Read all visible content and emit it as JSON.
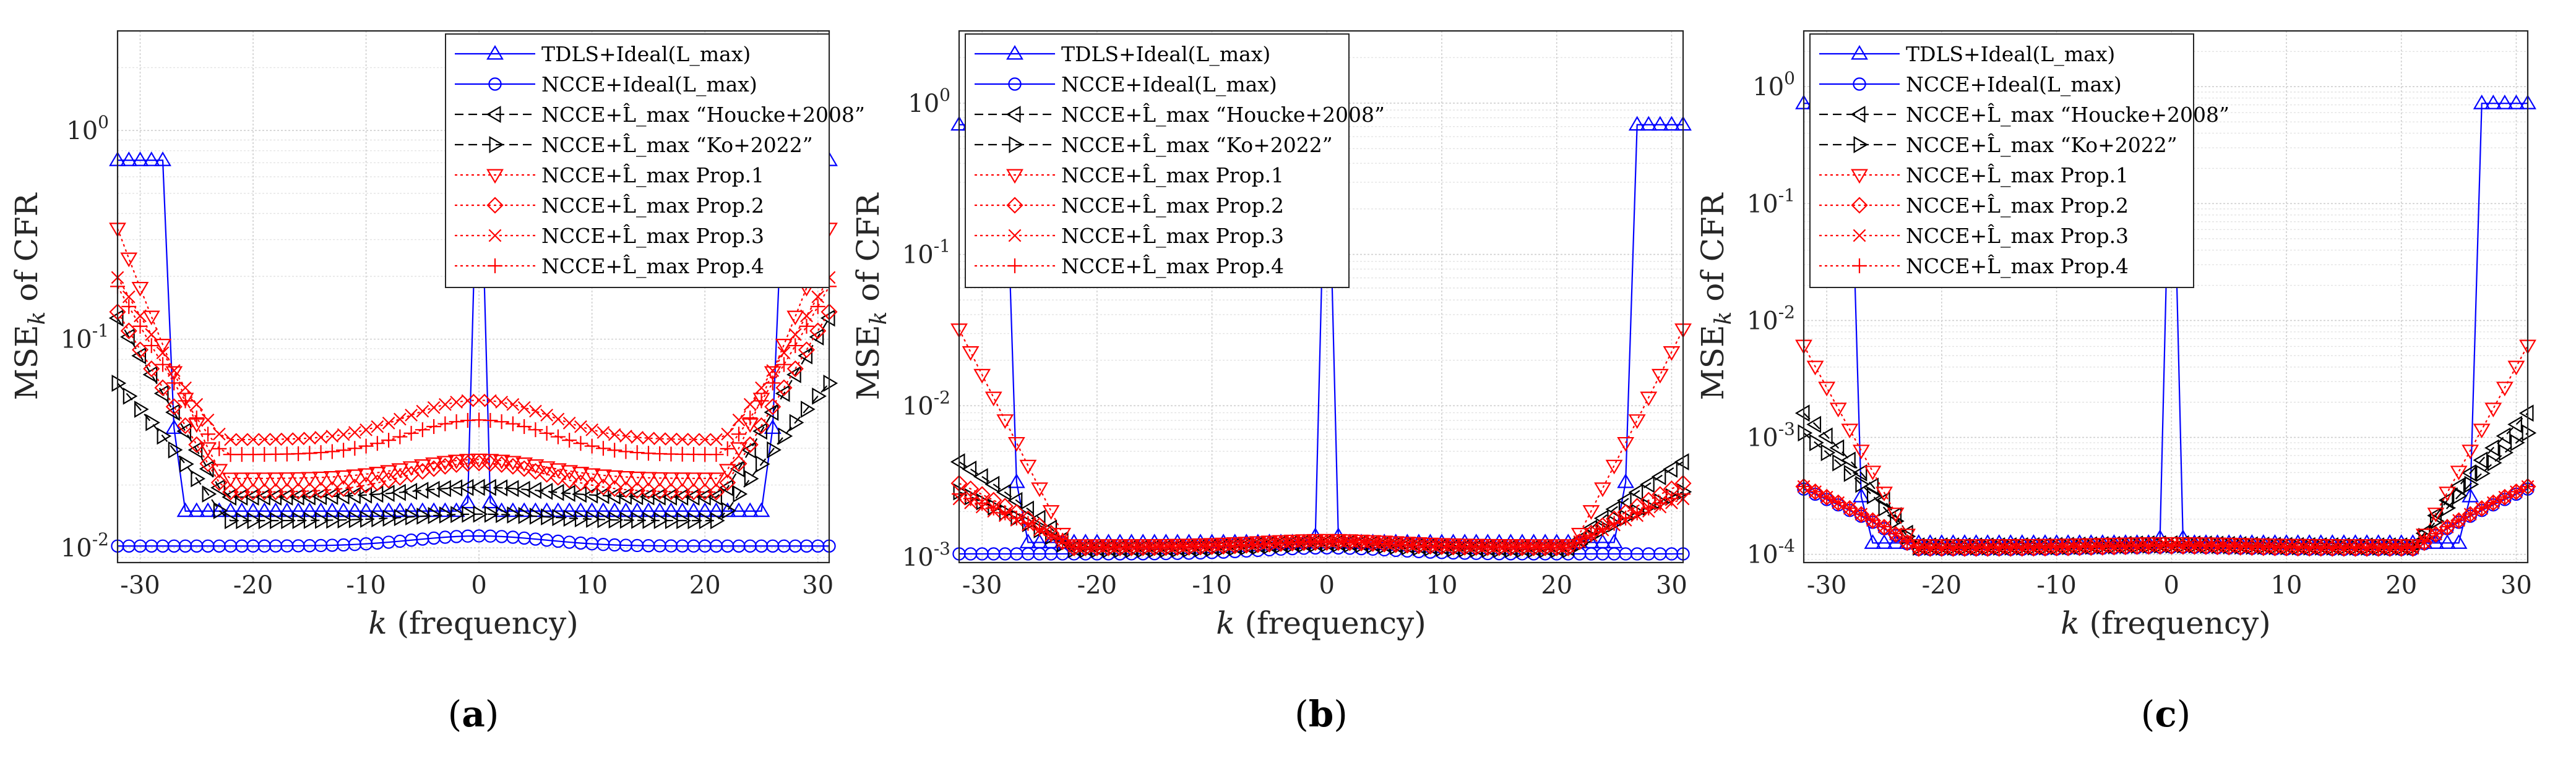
{
  "figure": {
    "panel_labels": [
      "(a)",
      "(b)",
      "(c)"
    ]
  },
  "legend_entries": [
    {
      "label": "TDLS+Ideal(L_max)",
      "color": "#0000ff",
      "marker": "triangle-up",
      "dash": "solid"
    },
    {
      "label": "NCCE+Ideal(L_max)",
      "color": "#0000ff",
      "marker": "circle",
      "dash": "solid"
    },
    {
      "label": "NCCE+L̂_max “Houcke+2008”",
      "color": "#000000",
      "marker": "triangle-left",
      "dash": "dashed"
    },
    {
      "label": "NCCE+L̂_max “Ko+2022”",
      "color": "#000000",
      "marker": "triangle-right",
      "dash": "dashed"
    },
    {
      "label": "NCCE+L̂_max Prop.1",
      "color": "#ff0000",
      "marker": "triangle-down",
      "dash": "dotted"
    },
    {
      "label": "NCCE+L̂_max Prop.2",
      "color": "#ff0000",
      "marker": "diamond",
      "dash": "dotted"
    },
    {
      "label": "NCCE+L̂_max Prop.3",
      "color": "#ff0000",
      "marker": "x",
      "dash": "dotted"
    },
    {
      "label": "NCCE+L̂_max Prop.4",
      "color": "#ff0000",
      "marker": "plus",
      "dash": "dotted"
    }
  ],
  "chart_data": [
    {
      "type": "line",
      "panel": "(a)",
      "xlabel": "k (frequency)",
      "ylabel": "MSE_k of CFR",
      "x_range": [
        -32,
        31
      ],
      "y_scale": "log",
      "ylim": [
        0.0085,
        3
      ],
      "x_ticks": [
        -30,
        -20,
        -10,
        0,
        10,
        20,
        30
      ],
      "y_ticks": [
        {
          "value": 0.01,
          "label": "10^-2"
        },
        {
          "value": 0.1,
          "label": "10^-1"
        },
        {
          "value": 1,
          "label": "10^0"
        }
      ],
      "grid": true,
      "legend_position": "top-right",
      "series_params": [
        {
          "edge": 0.72,
          "floor": 0.015,
          "bump": 0,
          "spike": 1.6,
          "flat": true
        },
        {
          "edge": 0.0102,
          "floor": 0.0102,
          "bump": 0.0012
        },
        {
          "edge": 0.14,
          "floor": 0.0175,
          "bump": 0.002,
          "slope": 4
        },
        {
          "edge": 0.066,
          "floor": 0.0135,
          "bump": 0.001,
          "slope": 4.5
        },
        {
          "edge": 0.4,
          "floor": 0.0215,
          "bump": 0.005,
          "slope": 3.5
        },
        {
          "edge": 0.15,
          "floor": 0.0185,
          "bump": 0.007,
          "slope": 4
        },
        {
          "edge": 0.22,
          "floor": 0.033,
          "bump": 0.018,
          "slope": 3.5
        },
        {
          "edge": 0.2,
          "floor": 0.028,
          "bump": 0.013,
          "slope": 3.5
        }
      ]
    },
    {
      "type": "line",
      "panel": "(b)",
      "xlabel": "k (frequency)",
      "ylabel": "MSE_k of CFR",
      "x_range": [
        -32,
        31
      ],
      "y_scale": "log",
      "ylim": [
        0.00092,
        3
      ],
      "x_ticks": [
        -30,
        -20,
        -10,
        0,
        10,
        20,
        30
      ],
      "y_ticks": [
        {
          "value": 0.001,
          "label": "10^-3"
        },
        {
          "value": 0.01,
          "label": "10^-2"
        },
        {
          "value": 0.1,
          "label": "10^-1"
        },
        {
          "value": 1,
          "label": "10^0"
        }
      ],
      "grid": true,
      "legend_position": "top-left",
      "series_params": [
        {
          "edge": 0.72,
          "floor": 0.00125,
          "bump": 0,
          "spike": 1.6,
          "flat": true
        },
        {
          "edge": 0.00105,
          "floor": 0.00105,
          "bump": 0.0001
        },
        {
          "edge": 0.0045,
          "floor": 0.00115,
          "bump": 0.0001,
          "slope": 5
        },
        {
          "edge": 0.0028,
          "floor": 0.00112,
          "bump": 0.0001,
          "slope": 5
        },
        {
          "edge": 0.038,
          "floor": 0.0012,
          "bump": 0.0001,
          "slope": 4
        },
        {
          "edge": 0.0032,
          "floor": 0.00115,
          "bump": 0.0001,
          "slope": 5
        },
        {
          "edge": 0.0025,
          "floor": 0.00118,
          "bump": 0.0001,
          "slope": 5
        },
        {
          "edge": 0.0027,
          "floor": 0.00116,
          "bump": 0.0001,
          "slope": 5
        }
      ]
    },
    {
      "type": "line",
      "panel": "(c)",
      "xlabel": "k (frequency)",
      "ylabel": "MSE_k of CFR",
      "x_range": [
        -32,
        31
      ],
      "y_scale": "log",
      "ylim": [
        8.5e-05,
        3
      ],
      "x_ticks": [
        -30,
        -20,
        -10,
        0,
        10,
        20,
        30
      ],
      "y_ticks": [
        {
          "value": 0.0001,
          "label": "10^-4"
        },
        {
          "value": 0.001,
          "label": "10^-3"
        },
        {
          "value": 0.01,
          "label": "10^-2"
        },
        {
          "value": 0.1,
          "label": "10^-1"
        },
        {
          "value": 1,
          "label": "10^0"
        }
      ],
      "grid": true,
      "legend_position": "top-left",
      "series_params": [
        {
          "edge": 0.72,
          "floor": 0.000125,
          "bump": 0,
          "spike": 1.6,
          "flat": true
        },
        {
          "edge": 0.00038,
          "floor": 0.00011,
          "bump": 5e-06,
          "slope": 5
        },
        {
          "edge": 0.0018,
          "floor": 0.000118,
          "bump": 5e-06,
          "slope": 5
        },
        {
          "edge": 0.0012,
          "floor": 0.000115,
          "bump": 5e-06,
          "slope": 5
        },
        {
          "edge": 0.0075,
          "floor": 0.00012,
          "bump": 5e-06,
          "slope": 4
        },
        {
          "edge": 0.0004,
          "floor": 0.000112,
          "bump": 5e-06,
          "slope": 5
        },
        {
          "edge": 0.0004,
          "floor": 0.000113,
          "bump": 5e-06,
          "slope": 5
        },
        {
          "edge": 0.0004,
          "floor": 0.000114,
          "bump": 5e-06,
          "slope": 5
        }
      ]
    }
  ]
}
